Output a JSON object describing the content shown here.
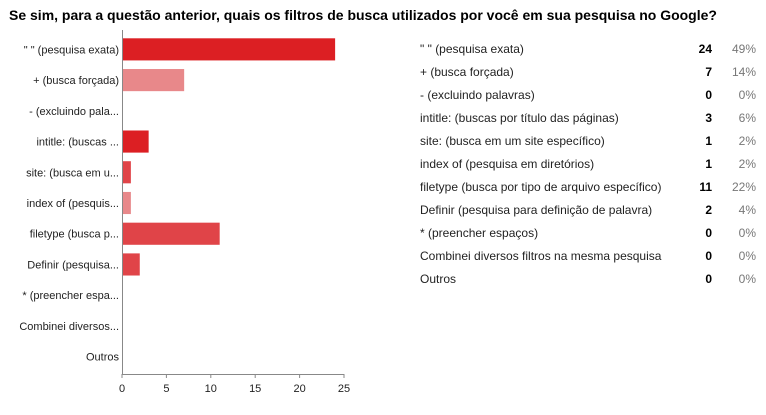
{
  "title": "Se sim, para a questão anterior, quais os filtros de busca utilizados por você em sua pesquisa no Google?",
  "colors": {
    "bar_dark": "#dc1f23",
    "bar_light": "#e8888a",
    "bar_mid": "#e04448",
    "axis": "#888888",
    "percent_text": "#777777"
  },
  "table": {
    "rows": [
      {
        "label": "\" \" (pesquisa exata)",
        "count": "24",
        "percent": "49%"
      },
      {
        "label": "+ (busca forçada)",
        "count": "7",
        "percent": "14%"
      },
      {
        "label": "- (excluindo palavras)",
        "count": "0",
        "percent": "0%"
      },
      {
        "label": "intitle: (buscas por título das páginas)",
        "count": "3",
        "percent": "6%"
      },
      {
        "label": "site: (busca em um site específico)",
        "count": "1",
        "percent": "2%"
      },
      {
        "label": "index of (pesquisa em diretórios)",
        "count": "1",
        "percent": "2%"
      },
      {
        "label": "filetype (busca por tipo de arquivo específico)",
        "count": "11",
        "percent": "22%"
      },
      {
        "label": "Definir (pesquisa para definição de palavra)",
        "count": "2",
        "percent": "4%"
      },
      {
        "label": "* (preencher espaços)",
        "count": "0",
        "percent": "0%"
      },
      {
        "label": "Combinei diversos filtros na mesma pesquisa",
        "count": "0",
        "percent": "0%"
      },
      {
        "label": "Outros",
        "count": "0",
        "percent": "0%"
      }
    ]
  },
  "chart_data": {
    "type": "bar",
    "orientation": "horizontal",
    "categories": [
      "\" \" (pesquisa exata)",
      "+ (busca forçada)",
      "- (excluindo pala...",
      "intitle: (buscas ...",
      "site: (busca em u...",
      "index of (pesquis...",
      "filetype (busca p...",
      "Definir (pesquisa...",
      "* (preencher espa...",
      "Combinei diversos...",
      "Outros"
    ],
    "values": [
      24,
      7,
      0,
      3,
      1,
      1,
      11,
      2,
      0,
      0,
      0
    ],
    "bar_colors": [
      "#dc1f23",
      "#e8888a",
      "#e8888a",
      "#dc1f23",
      "#e04448",
      "#e8888a",
      "#e04448",
      "#e04448",
      "#e8888a",
      "#e8888a",
      "#e8888a"
    ],
    "xlim": [
      0,
      25
    ],
    "xticks": [
      0,
      5,
      10,
      15,
      20,
      25
    ],
    "grid": false,
    "legend": "none"
  }
}
